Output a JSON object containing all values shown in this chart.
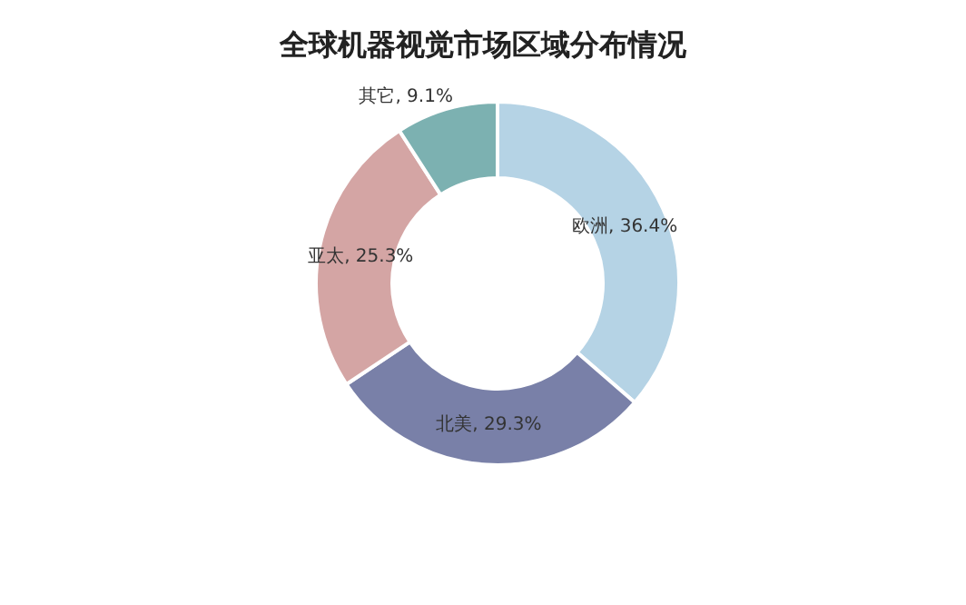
{
  "chart_data": {
    "type": "donut",
    "title": "全球机器视觉市场区域分布情况",
    "categories": [
      "欧洲",
      "北美",
      "亚太",
      "其它"
    ],
    "values": [
      36.4,
      29.3,
      25.3,
      9.1
    ],
    "value_labels": [
      "36.4%",
      "29.3%",
      "25.3%",
      "9.1%"
    ],
    "colors": [
      "#b5d3e5",
      "#7980a8",
      "#d4a5a4",
      "#7cb1b1"
    ]
  }
}
